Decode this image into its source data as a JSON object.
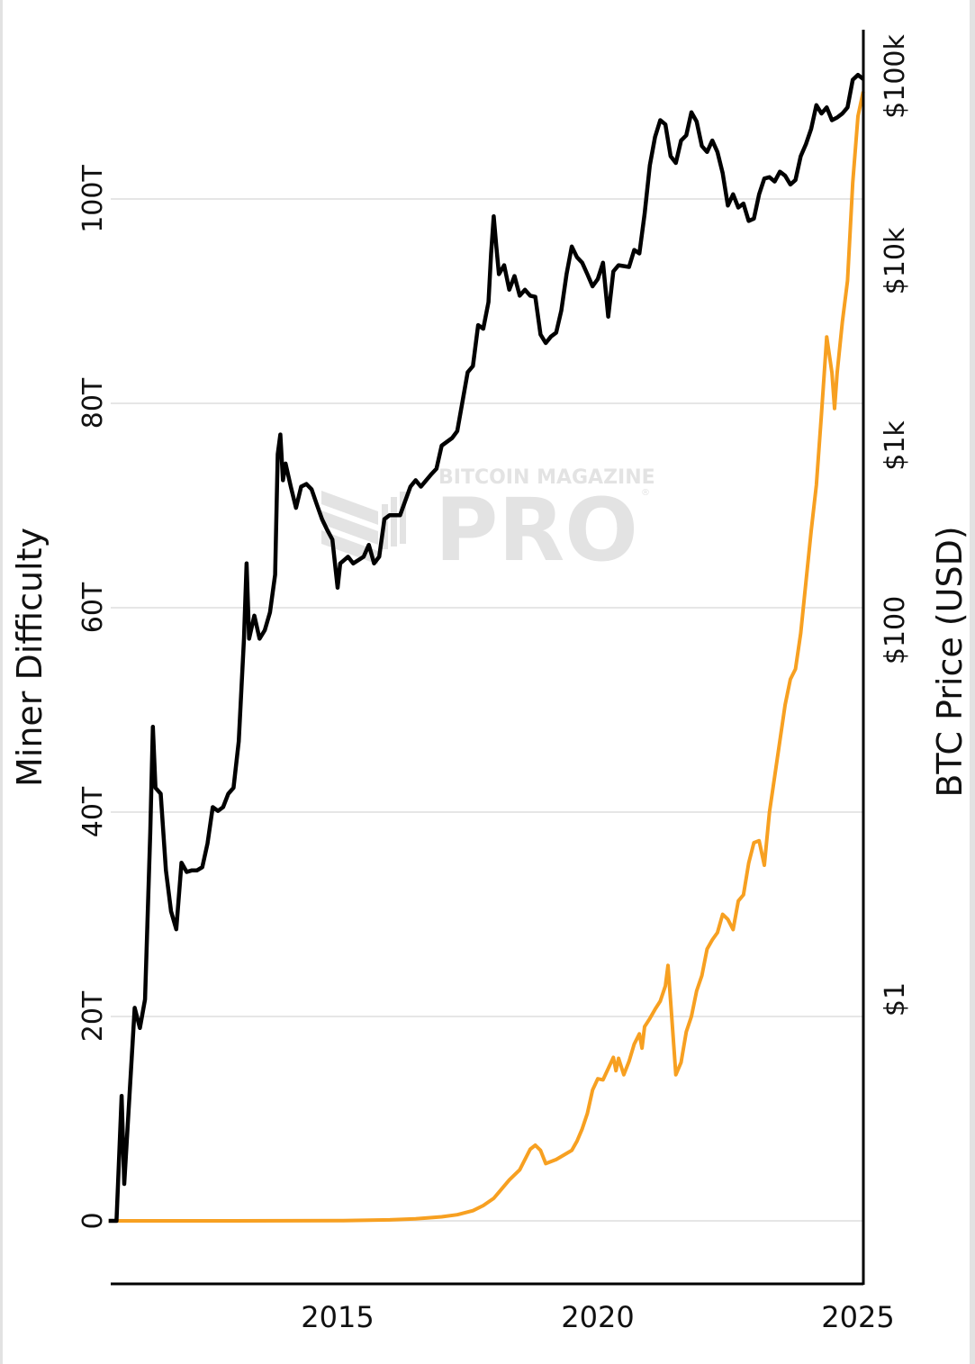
{
  "chart_data": {
    "type": "line",
    "title": "",
    "xlabel": "",
    "ylabel_left": "Miner Difficulty",
    "ylabel_right": "BTC Price (USD)",
    "x_ticks": [
      "2015",
      "2020",
      "2025"
    ],
    "xlim": [
      2010.6,
      2025.1
    ],
    "y_left": {
      "scale": "linear",
      "ticks": [
        "0",
        "20T",
        "40T",
        "60T",
        "80T",
        "100T"
      ],
      "tick_values": [
        0,
        20,
        40,
        60,
        80,
        100
      ],
      "range": [
        -6,
        120
      ]
    },
    "y_right": {
      "scale": "log",
      "ticks": [
        "$1",
        "$100",
        "$1k",
        "$10k",
        "$100k"
      ],
      "tick_values": [
        1,
        100,
        1000,
        10000,
        100000
      ]
    },
    "grid": true,
    "legend": "none",
    "colors": {
      "difficulty": "#f7a021",
      "price": "#000000",
      "grid": "#e6e6e6",
      "watermark": "#e3e3e3"
    },
    "series": [
      {
        "name": "Miner Difficulty",
        "axis": "left",
        "color": "#f7a021",
        "unit": "T",
        "points": [
          [
            2010.6,
            0
          ],
          [
            2013.0,
            0
          ],
          [
            2015.0,
            0.02
          ],
          [
            2016.0,
            0.1
          ],
          [
            2016.5,
            0.2
          ],
          [
            2017.0,
            0.4
          ],
          [
            2017.3,
            0.6
          ],
          [
            2017.6,
            1.0
          ],
          [
            2017.8,
            1.5
          ],
          [
            2018.0,
            2.2
          ],
          [
            2018.1,
            2.8
          ],
          [
            2018.3,
            4.0
          ],
          [
            2018.5,
            5.0
          ],
          [
            2018.6,
            6.0
          ],
          [
            2018.7,
            7.0
          ],
          [
            2018.8,
            7.4
          ],
          [
            2018.9,
            6.9
          ],
          [
            2019.0,
            5.6
          ],
          [
            2019.2,
            6.0
          ],
          [
            2019.4,
            6.6
          ],
          [
            2019.5,
            6.9
          ],
          [
            2019.6,
            7.8
          ],
          [
            2019.7,
            9.0
          ],
          [
            2019.8,
            10.5
          ],
          [
            2019.9,
            12.8
          ],
          [
            2020.0,
            13.9
          ],
          [
            2020.1,
            13.8
          ],
          [
            2020.2,
            14.9
          ],
          [
            2020.3,
            16.0
          ],
          [
            2020.35,
            14.7
          ],
          [
            2020.4,
            15.9
          ],
          [
            2020.5,
            14.3
          ],
          [
            2020.6,
            15.6
          ],
          [
            2020.7,
            17.3
          ],
          [
            2020.8,
            18.3
          ],
          [
            2020.85,
            16.9
          ],
          [
            2020.9,
            19.0
          ],
          [
            2021.0,
            19.8
          ],
          [
            2021.1,
            20.7
          ],
          [
            2021.2,
            21.5
          ],
          [
            2021.3,
            23.0
          ],
          [
            2021.35,
            25.0
          ],
          [
            2021.4,
            21.5
          ],
          [
            2021.5,
            14.3
          ],
          [
            2021.6,
            15.5
          ],
          [
            2021.7,
            18.5
          ],
          [
            2021.8,
            20.0
          ],
          [
            2021.9,
            22.5
          ],
          [
            2022.0,
            24.0
          ],
          [
            2022.1,
            26.6
          ],
          [
            2022.2,
            27.5
          ],
          [
            2022.3,
            28.2
          ],
          [
            2022.4,
            30.0
          ],
          [
            2022.5,
            29.5
          ],
          [
            2022.6,
            28.5
          ],
          [
            2022.7,
            31.3
          ],
          [
            2022.8,
            31.9
          ],
          [
            2022.9,
            35.0
          ],
          [
            2023.0,
            37.0
          ],
          [
            2023.1,
            37.2
          ],
          [
            2023.2,
            34.8
          ],
          [
            2023.3,
            40.0
          ],
          [
            2023.4,
            43.5
          ],
          [
            2023.5,
            47.0
          ],
          [
            2023.6,
            50.5
          ],
          [
            2023.7,
            53.0
          ],
          [
            2023.8,
            54.0
          ],
          [
            2023.9,
            57.5
          ],
          [
            2024.0,
            62.5
          ],
          [
            2024.1,
            67.5
          ],
          [
            2024.2,
            72.0
          ],
          [
            2024.3,
            79.0
          ],
          [
            2024.4,
            86.5
          ],
          [
            2024.5,
            83.0
          ],
          [
            2024.55,
            79.5
          ],
          [
            2024.6,
            83.0
          ],
          [
            2024.7,
            88.0
          ],
          [
            2024.8,
            92.0
          ],
          [
            2024.9,
            101.6
          ],
          [
            2025.0,
            108.1
          ],
          [
            2025.1,
            110.5
          ]
        ]
      },
      {
        "name": "BTC Price (USD)",
        "axis": "right",
        "color": "#000000",
        "points": [
          [
            2010.6,
            0.06
          ],
          [
            2010.75,
            0.06
          ],
          [
            2010.85,
            0.3
          ],
          [
            2010.9,
            0.1
          ],
          [
            2011.0,
            0.3
          ],
          [
            2011.1,
            0.9
          ],
          [
            2011.2,
            0.7
          ],
          [
            2011.3,
            1.0
          ],
          [
            2011.4,
            8.0
          ],
          [
            2011.45,
            30.0
          ],
          [
            2011.5,
            14.0
          ],
          [
            2011.6,
            13.0
          ],
          [
            2011.7,
            5.0
          ],
          [
            2011.8,
            3.0
          ],
          [
            2011.9,
            2.4
          ],
          [
            2012.0,
            5.5
          ],
          [
            2012.1,
            4.9
          ],
          [
            2012.2,
            5.0
          ],
          [
            2012.3,
            5.0
          ],
          [
            2012.4,
            5.2
          ],
          [
            2012.5,
            7.0
          ],
          [
            2012.6,
            11.0
          ],
          [
            2012.7,
            10.5
          ],
          [
            2012.8,
            11.0
          ],
          [
            2012.9,
            13.0
          ],
          [
            2013.0,
            14.0
          ],
          [
            2013.1,
            25.0
          ],
          [
            2013.2,
            90.0
          ],
          [
            2013.25,
            230.0
          ],
          [
            2013.3,
            90.0
          ],
          [
            2013.4,
            120.0
          ],
          [
            2013.5,
            90.0
          ],
          [
            2013.6,
            100.0
          ],
          [
            2013.7,
            125.0
          ],
          [
            2013.8,
            200.0
          ],
          [
            2013.85,
            900.0
          ],
          [
            2013.9,
            1150.0
          ],
          [
            2013.95,
            650.0
          ],
          [
            2014.0,
            800.0
          ],
          [
            2014.1,
            600.0
          ],
          [
            2014.2,
            460.0
          ],
          [
            2014.3,
            600.0
          ],
          [
            2014.4,
            620.0
          ],
          [
            2014.5,
            580.0
          ],
          [
            2014.6,
            480.0
          ],
          [
            2014.7,
            400.0
          ],
          [
            2014.8,
            350.0
          ],
          [
            2014.9,
            310.0
          ],
          [
            2015.0,
            170.0
          ],
          [
            2015.05,
            230.0
          ],
          [
            2015.2,
            250.0
          ],
          [
            2015.3,
            230.0
          ],
          [
            2015.5,
            250.0
          ],
          [
            2015.6,
            290.0
          ],
          [
            2015.7,
            230.0
          ],
          [
            2015.8,
            250.0
          ],
          [
            2015.9,
            400.0
          ],
          [
            2016.0,
            420.0
          ],
          [
            2016.2,
            420.0
          ],
          [
            2016.4,
            600.0
          ],
          [
            2016.5,
            650.0
          ],
          [
            2016.6,
            600.0
          ],
          [
            2016.8,
            700.0
          ],
          [
            2016.9,
            750.0
          ],
          [
            2017.0,
            1000.0
          ],
          [
            2017.2,
            1100.0
          ],
          [
            2017.3,
            1200.0
          ],
          [
            2017.5,
            2500.0
          ],
          [
            2017.6,
            2700.0
          ],
          [
            2017.7,
            4500.0
          ],
          [
            2017.8,
            4300.0
          ],
          [
            2017.9,
            6000.0
          ],
          [
            2017.95,
            11000.0
          ],
          [
            2018.0,
            17500.0
          ],
          [
            2018.05,
            12000.0
          ],
          [
            2018.1,
            8500.0
          ],
          [
            2018.2,
            9500.0
          ],
          [
            2018.3,
            7000.0
          ],
          [
            2018.4,
            8300.0
          ],
          [
            2018.5,
            6500.0
          ],
          [
            2018.6,
            7000.0
          ],
          [
            2018.7,
            6500.0
          ],
          [
            2018.8,
            6400.0
          ],
          [
            2018.9,
            4000.0
          ],
          [
            2019.0,
            3600.0
          ],
          [
            2019.1,
            3900.0
          ],
          [
            2019.2,
            4100.0
          ],
          [
            2019.3,
            5400.0
          ],
          [
            2019.4,
            8500.0
          ],
          [
            2019.5,
            12000.0
          ],
          [
            2019.6,
            10500.0
          ],
          [
            2019.7,
            9800.0
          ],
          [
            2019.8,
            8500.0
          ],
          [
            2019.9,
            7300.0
          ],
          [
            2020.0,
            8000.0
          ],
          [
            2020.1,
            9800.0
          ],
          [
            2020.2,
            5000.0
          ],
          [
            2020.3,
            8800.0
          ],
          [
            2020.4,
            9500.0
          ],
          [
            2020.6,
            9300.0
          ],
          [
            2020.7,
            11500.0
          ],
          [
            2020.8,
            11000.0
          ],
          [
            2020.9,
            18000.0
          ],
          [
            2021.0,
            33000.0
          ],
          [
            2021.1,
            47000.0
          ],
          [
            2021.2,
            58000.0
          ],
          [
            2021.3,
            55000.0
          ],
          [
            2021.4,
            37000.0
          ],
          [
            2021.5,
            34000.0
          ],
          [
            2021.6,
            45000.0
          ],
          [
            2021.7,
            48000.0
          ],
          [
            2021.8,
            64000.0
          ],
          [
            2021.9,
            57000.0
          ],
          [
            2022.0,
            42000.0
          ],
          [
            2022.1,
            39000.0
          ],
          [
            2022.2,
            45000.0
          ],
          [
            2022.3,
            39000.0
          ],
          [
            2022.4,
            30000.0
          ],
          [
            2022.5,
            20000.0
          ],
          [
            2022.6,
            23000.0
          ],
          [
            2022.7,
            19500.0
          ],
          [
            2022.8,
            20500.0
          ],
          [
            2022.9,
            16500.0
          ],
          [
            2023.0,
            17000.0
          ],
          [
            2023.1,
            23000.0
          ],
          [
            2023.2,
            28000.0
          ],
          [
            2023.3,
            28500.0
          ],
          [
            2023.4,
            27000.0
          ],
          [
            2023.5,
            30500.0
          ],
          [
            2023.6,
            29000.0
          ],
          [
            2023.7,
            26000.0
          ],
          [
            2023.8,
            27500.0
          ],
          [
            2023.9,
            37000.0
          ],
          [
            2024.0,
            43000.0
          ],
          [
            2024.1,
            52000.0
          ],
          [
            2024.2,
            70000.0
          ],
          [
            2024.3,
            63000.0
          ],
          [
            2024.4,
            68000.0
          ],
          [
            2024.5,
            58000.0
          ],
          [
            2024.6,
            60000.0
          ],
          [
            2024.7,
            63000.0
          ],
          [
            2024.8,
            68000.0
          ],
          [
            2024.9,
            96000.0
          ],
          [
            2025.0,
            102000.0
          ],
          [
            2025.1,
            97000.0
          ]
        ]
      }
    ],
    "watermark": {
      "line1": "BITCOIN MAGAZINE",
      "line2": "PRO",
      "reg": "®"
    }
  }
}
